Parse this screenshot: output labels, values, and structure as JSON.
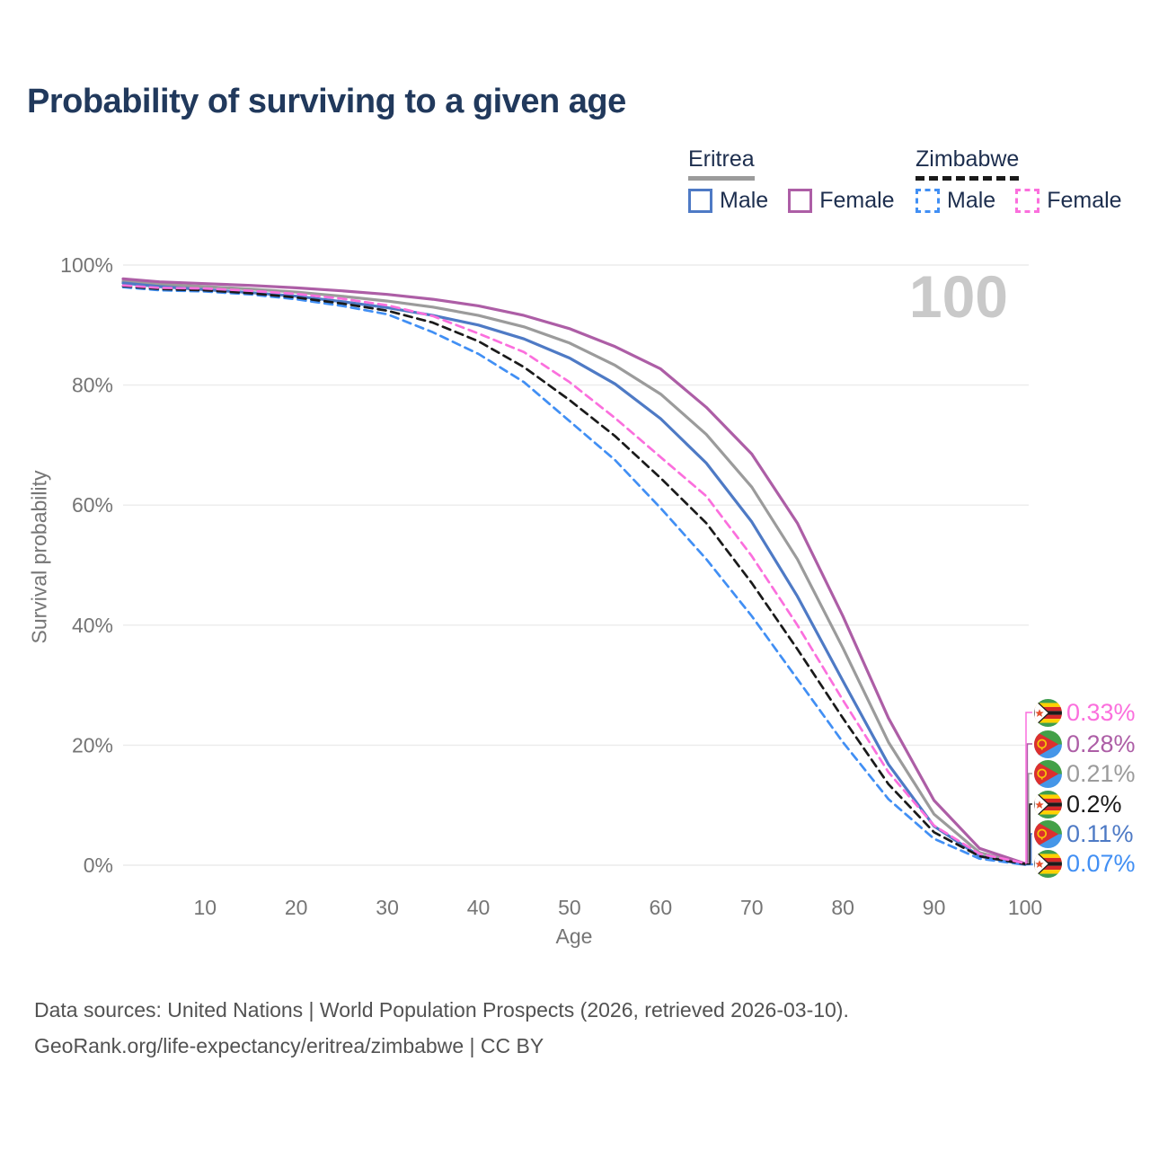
{
  "header": {
    "title": "Probability of surviving to a given age"
  },
  "watermark": "100",
  "legend": {
    "groups": [
      {
        "label": "Eritrea",
        "line_style": "solid",
        "items": [
          {
            "label": "Male",
            "color": "#4e7ac5"
          },
          {
            "label": "Female",
            "color": "#ad5ea6"
          }
        ]
      },
      {
        "label": "Zimbabwe",
        "line_style": "dashed",
        "items": [
          {
            "label": "Male",
            "color": "#418ff4"
          },
          {
            "label": "Female",
            "color": "#fb6fdd"
          }
        ]
      }
    ]
  },
  "chart_data": {
    "type": "line",
    "title": "Probability of surviving to a given age",
    "xlabel": "Age",
    "ylabel": "Survival probability",
    "xlim": [
      1,
      100
    ],
    "ylim": [
      0,
      100
    ],
    "grid": "horizontal",
    "legend_position": "top-right",
    "xticks": [
      10,
      20,
      30,
      40,
      50,
      60,
      70,
      80,
      90,
      100
    ],
    "yticks": [
      {
        "value": 0,
        "label": "0%"
      },
      {
        "value": 20,
        "label": "20%"
      },
      {
        "value": 40,
        "label": "40%"
      },
      {
        "value": 60,
        "label": "60%"
      },
      {
        "value": 80,
        "label": "80%"
      },
      {
        "value": 100,
        "label": "100%"
      }
    ],
    "x": [
      1,
      5,
      10,
      15,
      20,
      25,
      30,
      35,
      40,
      45,
      50,
      55,
      60,
      65,
      70,
      75,
      80,
      85,
      90,
      95,
      100
    ],
    "series": [
      {
        "id": "eritrea-all",
        "name": "Eritrea",
        "sex": "All",
        "color": "#9b9b9b",
        "dash": false,
        "values": [
          97.3,
          96.8,
          96.4,
          96.0,
          95.5,
          94.8,
          94.0,
          93.0,
          91.6,
          89.7,
          87.0,
          83.3,
          78.5,
          71.8,
          63.0,
          51.0,
          36.2,
          20.5,
          8.5,
          2.1,
          0.21
        ],
        "end_label": {
          "text": "0.21%",
          "flag": "eritrea",
          "row": 2
        }
      },
      {
        "id": "eritrea-male",
        "name": "Eritrea Male",
        "sex": "Male",
        "color": "#4e7ac5",
        "dash": false,
        "values": [
          97.0,
          96.4,
          95.9,
          95.4,
          94.8,
          93.9,
          92.9,
          91.6,
          90.0,
          87.7,
          84.5,
          80.2,
          74.4,
          67.0,
          57.2,
          44.8,
          30.7,
          16.8,
          6.5,
          1.5,
          0.11
        ],
        "end_label": {
          "text": "0.11%",
          "flag": "eritrea",
          "row": 4
        }
      },
      {
        "id": "eritrea-female",
        "name": "Eritrea Female",
        "sex": "Female",
        "color": "#ad5ea6",
        "dash": false,
        "values": [
          97.7,
          97.2,
          96.9,
          96.6,
          96.2,
          95.7,
          95.1,
          94.3,
          93.2,
          91.6,
          89.4,
          86.4,
          82.7,
          76.3,
          68.5,
          57.0,
          41.5,
          24.5,
          10.8,
          2.8,
          0.28
        ],
        "end_label": {
          "text": "0.28%",
          "flag": "eritrea",
          "row": 1
        }
      },
      {
        "id": "zimbabwe-male",
        "name": "Zimbabwe Male",
        "sex": "Male",
        "color": "#418ff4",
        "dash": true,
        "values": [
          96.3,
          95.8,
          95.6,
          95.1,
          94.3,
          93.2,
          91.8,
          88.8,
          85.2,
          80.5,
          74.0,
          67.5,
          59.5,
          51.0,
          41.5,
          31.0,
          20.5,
          11.0,
          4.4,
          1.1,
          0.07
        ],
        "end_label": {
          "text": "0.07%",
          "flag": "zimbabwe",
          "row": 5
        }
      },
      {
        "id": "zimbabwe-all",
        "name": "Zimbabwe",
        "sex": "All",
        "color": "#1a1a1a",
        "dash": true,
        "values": [
          96.5,
          96.0,
          95.8,
          95.3,
          94.6,
          93.6,
          92.4,
          90.4,
          87.3,
          83.0,
          77.5,
          71.5,
          64.5,
          57.0,
          47.0,
          36.0,
          24.5,
          13.5,
          5.5,
          1.5,
          0.2
        ],
        "end_label": {
          "text": "0.2%",
          "flag": "zimbabwe",
          "row": 3
        }
      },
      {
        "id": "zimbabwe-female",
        "name": "Zimbabwe Female",
        "sex": "Female",
        "color": "#fb6fdd",
        "dash": true,
        "values": [
          96.6,
          96.2,
          96.1,
          95.7,
          95.2,
          94.4,
          93.3,
          91.5,
          88.6,
          85.5,
          80.5,
          74.5,
          68.0,
          61.5,
          51.5,
          40.0,
          27.5,
          15.5,
          6.6,
          1.9,
          0.33
        ],
        "end_label": {
          "text": "0.33%",
          "flag": "zimbabwe",
          "row": 0
        }
      }
    ]
  },
  "footer": {
    "line1": "Data sources: United Nations | World Population Prospects (2026, retrieved 2026-03-10).",
    "line2": "GeoRank.org/life-expectancy/eritrea/zimbabwe | CC BY"
  }
}
